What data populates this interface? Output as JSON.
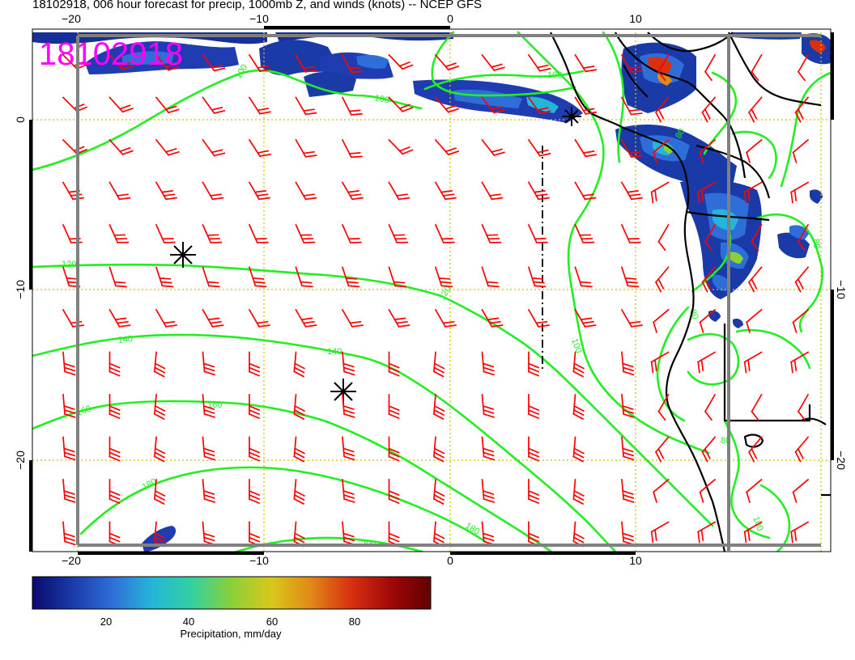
{
  "title": "18102918, 006 hour forecast for precip, 1000mb Z, and winds (knots) -- NCEP GFS",
  "stamp": "18102918",
  "stamp_color": "#ff00ff",
  "axes": {
    "lon_ticks": [
      "−20",
      "−10",
      "0",
      "10"
    ],
    "lat_ticks": [
      "0",
      "−10",
      "−20"
    ],
    "lon_range": [
      -22.5,
      20.8
    ],
    "lat_range": [
      -24.7,
      5.0
    ]
  },
  "colorbar": {
    "label": "Precipitation, mm/day",
    "ticks": [
      "20",
      "40",
      "60",
      "80"
    ],
    "colors": [
      "#0a0a6e",
      "#1a3aa8",
      "#2e6ed8",
      "#25b5d8",
      "#33d0a0",
      "#8ad038",
      "#d8c81a",
      "#e08818",
      "#d83010",
      "#a00808",
      "#600000"
    ]
  },
  "contours": {
    "color": "#22ee22",
    "labels": [
      "100",
      "100",
      "100",
      "120",
      "120",
      "140",
      "140",
      "160",
      "160",
      "180",
      "180",
      "200",
      "100",
      "80",
      "80",
      "80",
      "100",
      "80"
    ]
  },
  "markers": {
    "low_high_symbols": 3
  },
  "wind_barbs": {
    "color": "#ff0000"
  },
  "colors": {
    "coast": "#000000",
    "grid": "#d8c000",
    "frame": "#808080"
  }
}
